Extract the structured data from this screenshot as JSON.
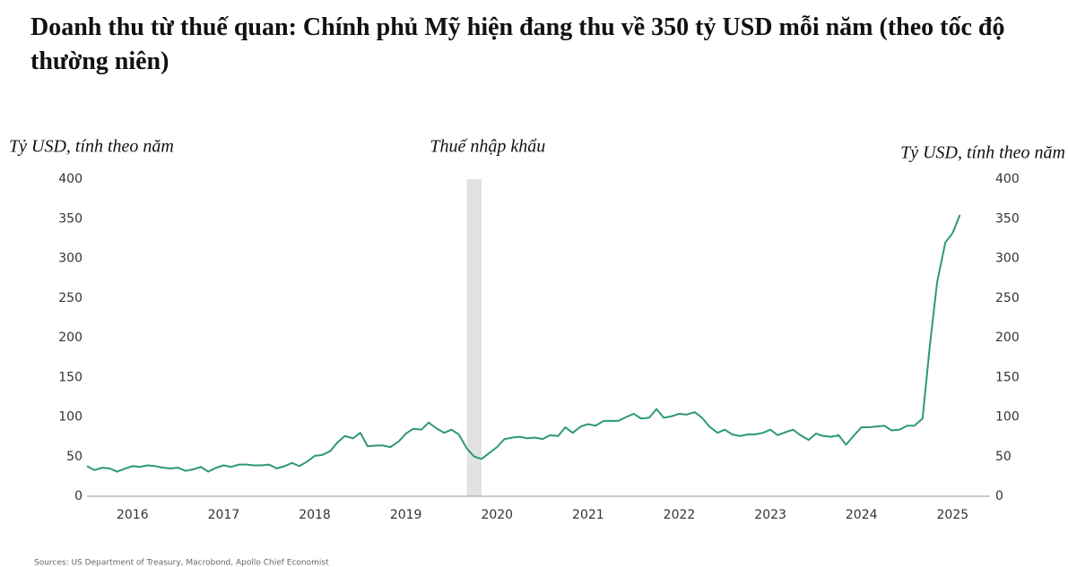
{
  "chart_data": {
    "type": "line",
    "title": "Doanh thu từ thuế quan: Chính phủ Mỹ hiện đang thu về 350 tỷ USD mỗi năm (theo tốc độ thường niên)",
    "y_label": "Tỷ USD, tính theo năm",
    "y2_label": "Tỷ USD, tính theo năm",
    "source": "Sources: US Department of Treasury, Macrobond, Apollo Chief Economist",
    "shade": {
      "label": "Thuế nhập khẩu",
      "range": [
        2020.17,
        2020.33
      ]
    },
    "color": "#2e9a6e",
    "x": [
      2016.0,
      2016.08,
      2016.17,
      2016.25,
      2016.33,
      2016.42,
      2016.5,
      2016.58,
      2016.67,
      2016.75,
      2016.83,
      2016.92,
      2017.0,
      2017.08,
      2017.17,
      2017.25,
      2017.33,
      2017.42,
      2017.5,
      2017.58,
      2017.67,
      2017.75,
      2017.83,
      2017.92,
      2018.0,
      2018.08,
      2018.17,
      2018.25,
      2018.33,
      2018.42,
      2018.5,
      2018.58,
      2018.67,
      2018.75,
      2018.83,
      2018.92,
      2019.0,
      2019.08,
      2019.17,
      2019.25,
      2019.33,
      2019.42,
      2019.5,
      2019.58,
      2019.67,
      2019.75,
      2019.83,
      2019.92,
      2020.0,
      2020.08,
      2020.17,
      2020.25,
      2020.33,
      2020.42,
      2020.5,
      2020.58,
      2020.67,
      2020.75,
      2020.83,
      2020.92,
      2021.0,
      2021.08,
      2021.17,
      2021.25,
      2021.33,
      2021.42,
      2021.5,
      2021.58,
      2021.67,
      2021.75,
      2021.83,
      2021.92,
      2022.0,
      2022.08,
      2022.17,
      2022.25,
      2022.33,
      2022.42,
      2022.5,
      2022.58,
      2022.67,
      2022.75,
      2022.83,
      2022.92,
      2023.0,
      2023.08,
      2023.17,
      2023.25,
      2023.33,
      2023.42,
      2023.5,
      2023.58,
      2023.67,
      2023.75,
      2023.83,
      2023.92,
      2024.0,
      2024.08,
      2024.17,
      2024.25,
      2024.33,
      2024.42,
      2024.5,
      2024.58,
      2024.67,
      2024.75,
      2024.83,
      2024.92,
      2025.0,
      2025.08,
      2025.17,
      2025.25,
      2025.33,
      2025.42,
      2025.5,
      2025.58
    ],
    "values": [
      38,
      33,
      36,
      35,
      31,
      35,
      38,
      37,
      39,
      38,
      36,
      35,
      36,
      32,
      34,
      37,
      31,
      36,
      39,
      37,
      40,
      40,
      39,
      39,
      40,
      35,
      38,
      42,
      38,
      44,
      51,
      52,
      57,
      68,
      76,
      73,
      80,
      63,
      64,
      64,
      62,
      69,
      79,
      85,
      84,
      93,
      86,
      80,
      84,
      78,
      60,
      50,
      47,
      55,
      62,
      72,
      74,
      75,
      73,
      74,
      72,
      77,
      76,
      87,
      80,
      88,
      91,
      89,
      95,
      95,
      95,
      100,
      104,
      98,
      99,
      110,
      99,
      101,
      104,
      103,
      106,
      99,
      88,
      80,
      84,
      78,
      76,
      78,
      78,
      80,
      84,
      77,
      81,
      84,
      77,
      71,
      79,
      76,
      75,
      77,
      65,
      77,
      87,
      87,
      88,
      89,
      83,
      84,
      89,
      89,
      98,
      190,
      270,
      320,
      332,
      355
    ],
    "xlim": [
      2016,
      2025.91
    ],
    "xticks": [
      {
        "value": 2016.5,
        "label": "2016"
      },
      {
        "value": 2017.5,
        "label": "2017"
      },
      {
        "value": 2018.5,
        "label": "2018"
      },
      {
        "value": 2019.5,
        "label": "2019"
      },
      {
        "value": 2020.5,
        "label": "2020"
      },
      {
        "value": 2021.5,
        "label": "2021"
      },
      {
        "value": 2022.5,
        "label": "2022"
      },
      {
        "value": 2023.5,
        "label": "2023"
      },
      {
        "value": 2024.5,
        "label": "2024"
      },
      {
        "value": 2025.5,
        "label": "2025"
      }
    ],
    "ylim": [
      0,
      400
    ],
    "yticks": [
      0,
      50,
      100,
      150,
      200,
      250,
      300,
      350,
      400
    ],
    "y2lim": [
      0,
      400
    ],
    "y2ticks": [
      0,
      50,
      100,
      150,
      200,
      250,
      300,
      350,
      400
    ]
  }
}
